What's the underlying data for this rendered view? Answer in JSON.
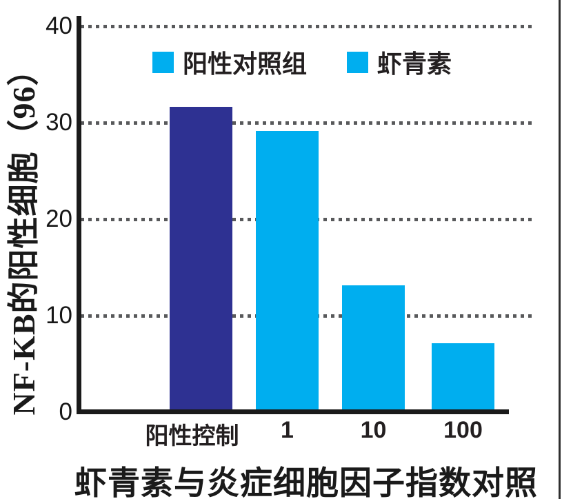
{
  "chart_data": {
    "type": "bar",
    "categories": [
      "阳性控制",
      "1",
      "10",
      "100"
    ],
    "values": [
      31.5,
      29,
      13,
      7
    ],
    "bar_colors": [
      "#2E3192",
      "#00AEEF",
      "#00AEEF",
      "#00AEEF"
    ],
    "title": "虾青素与炎症细胞因子指数对照",
    "xlabel": "",
    "ylabel": "NF-KB的阳性细胞（96）",
    "yticks": [
      0,
      10,
      20,
      30,
      40
    ],
    "ylim": [
      0,
      40
    ],
    "grid": "horizontal-dotted",
    "gridline_color": "#58595b",
    "axis_color": "#1a1a1a",
    "legend_position": "top-inside",
    "legend": [
      {
        "label": "阳性对照组",
        "color": "#00AEEF"
      },
      {
        "label": "虾青素",
        "color": "#00AEEF"
      }
    ]
  }
}
